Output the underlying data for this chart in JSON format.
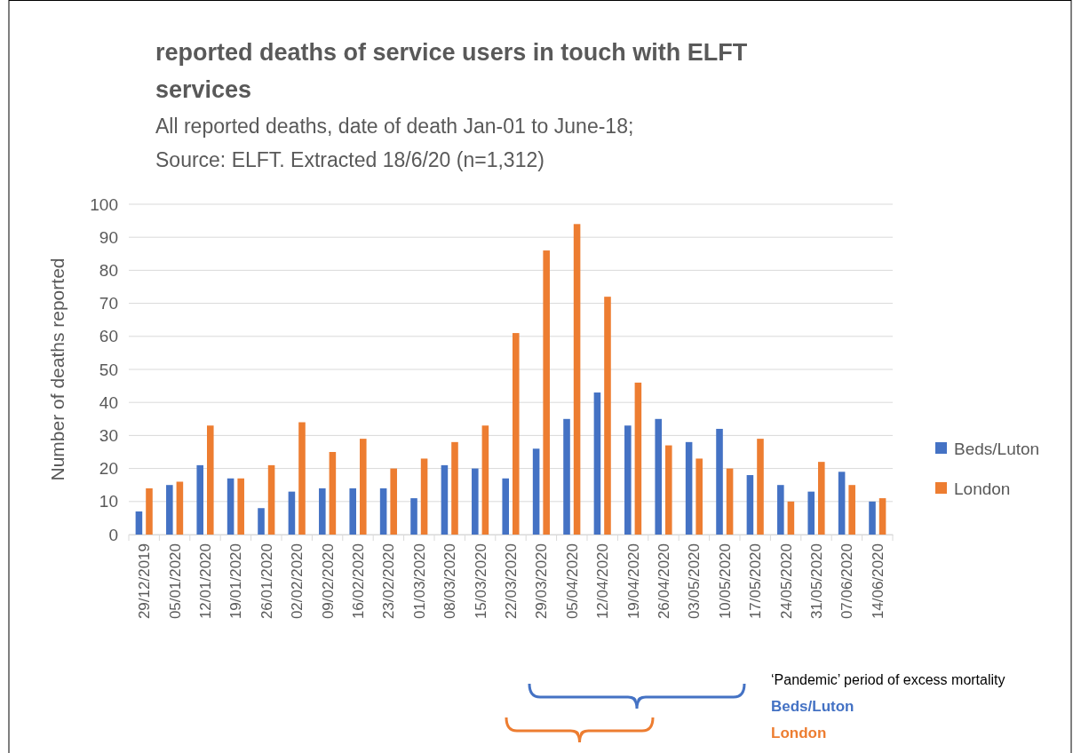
{
  "chart_data": {
    "type": "bar",
    "title": "reported deaths of service users in touch with ELFT services",
    "subtitle": "All reported deaths, date of death Jan-01 to June-18;\nSource: ELFT. Extracted 18/6/20 (n=1,312)",
    "ylabel": "Number of deaths reported",
    "categories": [
      "29/12/2019",
      "05/01/2020",
      "12/01/2020",
      "19/01/2020",
      "26/01/2020",
      "02/02/2020",
      "09/02/2020",
      "16/02/2020",
      "23/02/2020",
      "01/03/2020",
      "08/03/2020",
      "15/03/2020",
      "22/03/2020",
      "29/03/2020",
      "05/04/2020",
      "12/04/2020",
      "19/04/2020",
      "26/04/2020",
      "03/05/2020",
      "10/05/2020",
      "17/05/2020",
      "24/05/2020",
      "31/05/2020",
      "07/06/2020",
      "14/06/2020"
    ],
    "series": [
      {
        "name": "Beds/Luton",
        "color": "#4472c4",
        "values": [
          7,
          15,
          21,
          17,
          8,
          13,
          14,
          14,
          14,
          11,
          21,
          20,
          17,
          26,
          35,
          43,
          33,
          35,
          28,
          32,
          18,
          15,
          13,
          19,
          10
        ]
      },
      {
        "name": "London",
        "color": "#ed7d31",
        "values": [
          14,
          16,
          33,
          17,
          21,
          34,
          25,
          29,
          20,
          23,
          28,
          33,
          61,
          86,
          94,
          72,
          46,
          27,
          23,
          20,
          29,
          10,
          22,
          15,
          11
        ]
      }
    ],
    "ylim": [
      0,
      100
    ],
    "yticks": [
      0,
      10,
      20,
      30,
      40,
      50,
      60,
      70,
      80,
      90,
      100
    ],
    "grid": "y",
    "legend": "right",
    "annotations": [
      "‘Pandemic’ period of excess mortality",
      "Beds/Luton",
      "London"
    ]
  }
}
